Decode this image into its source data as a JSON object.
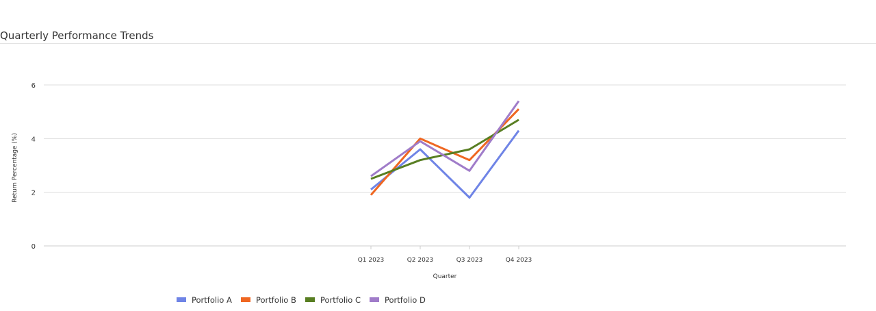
{
  "card": {
    "title": "Quarterly Performance Trends"
  },
  "chart_data": {
    "type": "line",
    "xlabel": "Quarter",
    "ylabel": "Return Percentage (%)",
    "categories": [
      "Q1 2023",
      "Q2 2023",
      "Q3 2023",
      "Q4 2023"
    ],
    "ylim": [
      0,
      7
    ],
    "yticks": [
      0,
      2,
      4,
      6
    ],
    "grid": true,
    "legend_position": "bottom-left",
    "series": [
      {
        "name": "Portfolio A",
        "color": "#6f84e6",
        "values": [
          2.1,
          3.6,
          1.8,
          4.3
        ]
      },
      {
        "name": "Portfolio B",
        "color": "#ef6722",
        "values": [
          1.9,
          4.0,
          3.2,
          5.1
        ]
      },
      {
        "name": "Portfolio C",
        "color": "#587e22",
        "values": [
          2.5,
          3.2,
          3.6,
          4.7
        ]
      },
      {
        "name": "Portfolio D",
        "color": "#a07cc9",
        "values": [
          2.6,
          3.9,
          2.8,
          5.4
        ]
      }
    ]
  }
}
